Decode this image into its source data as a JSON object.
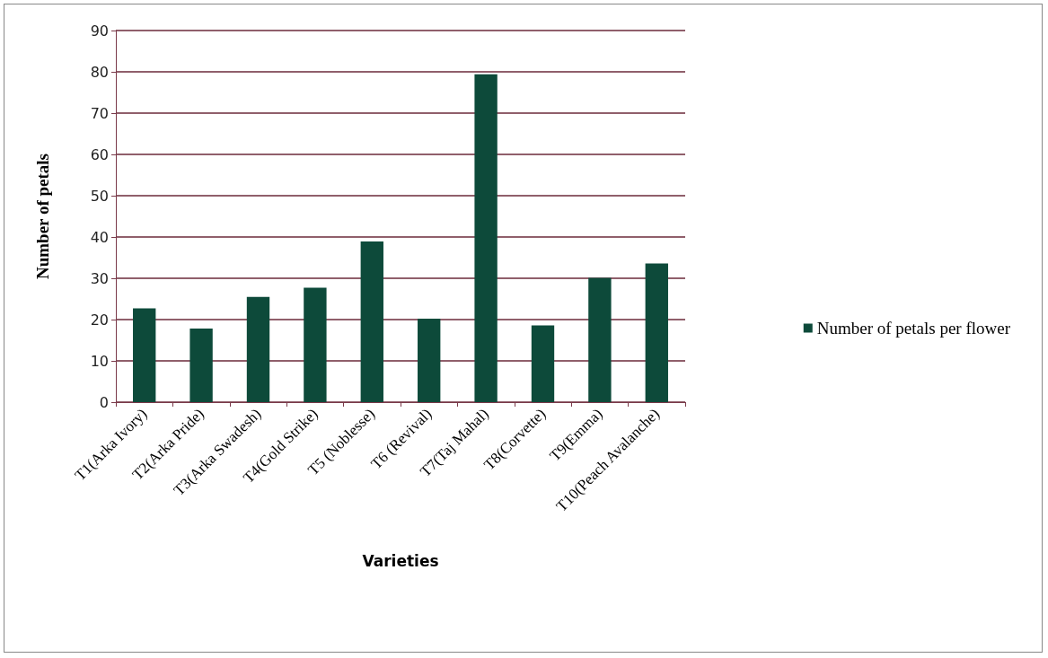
{
  "chart_data": {
    "type": "bar",
    "xlabel": "Varieties",
    "ylabel": "Number of petals",
    "categories": [
      "T1(Arka Ivory)",
      "T2(Arka Pride)",
      "T3(Arka Swadesh)",
      "T4(Gold Strike)",
      "T5 (Noblesse)",
      "T6 (Revival)",
      "T7(Taj Mahal)",
      "T8(Corvette)",
      "T9(Emma)",
      "T10(Peach Avalanche)"
    ],
    "series": [
      {
        "name": "Number of petals per flower",
        "color": "#0d4a3a",
        "values": [
          22.7,
          17.8,
          25.5,
          27.7,
          38.9,
          20.2,
          79.4,
          18.6,
          30.1,
          33.6
        ]
      }
    ],
    "ylim": [
      0,
      90
    ],
    "yticks": [
      0,
      10,
      20,
      30,
      40,
      50,
      60,
      70,
      80,
      90
    ],
    "grid": "y",
    "legend": "right"
  }
}
